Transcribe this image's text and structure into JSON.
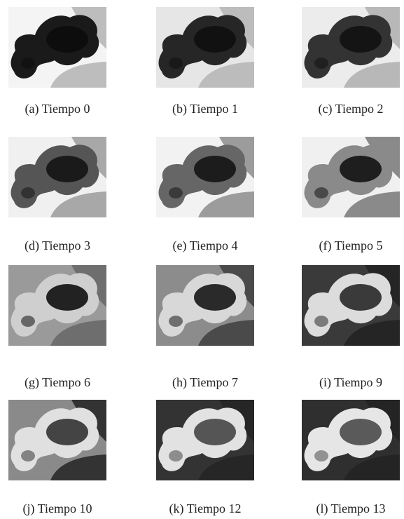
{
  "panels": [
    {
      "caption": "(a) Tiempo 0"
    },
    {
      "caption": "(b) Tiempo 1"
    },
    {
      "caption": "(c) Tiempo 2"
    },
    {
      "caption": "(d) Tiempo 3"
    },
    {
      "caption": "(e) Tiempo 4"
    },
    {
      "caption": "(f) Tiempo 5"
    },
    {
      "caption": "(g) Tiempo 6"
    },
    {
      "caption": "(h) Tiempo 7"
    },
    {
      "caption": "(i) Tiempo 9"
    },
    {
      "caption": "(j) Tiempo 10"
    },
    {
      "caption": "(k) Tiempo 12"
    },
    {
      "caption": "(l) Tiempo 13"
    }
  ]
}
